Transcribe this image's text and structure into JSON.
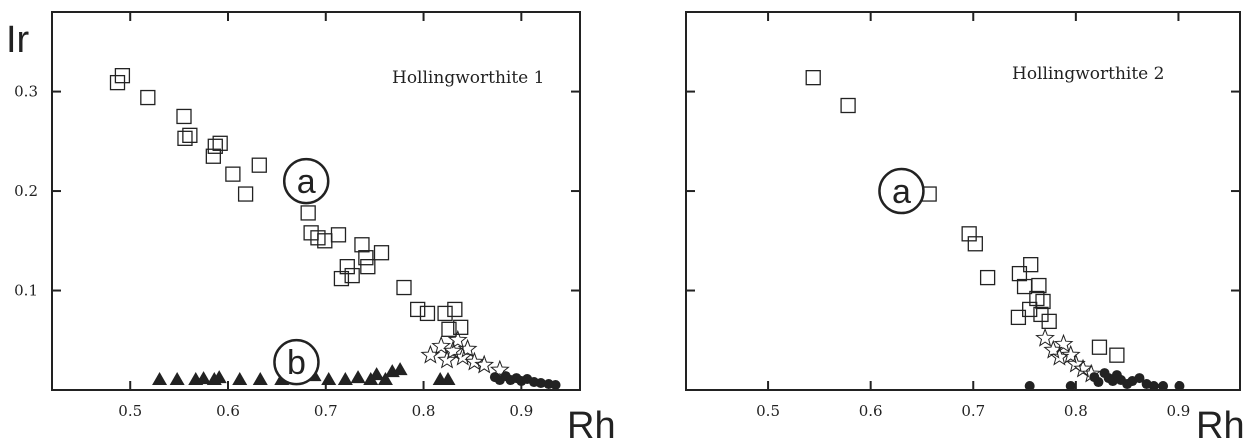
{
  "ylabel": "Ir",
  "xlabel": "Rh",
  "chart_data": [
    {
      "type": "scatter",
      "title": "Hollingworthite 1",
      "xlim": [
        0.42,
        0.96
      ],
      "ylim": [
        0,
        0.38
      ],
      "x_ticks": [
        0.5,
        0.6,
        0.7,
        0.8,
        0.9
      ],
      "x_tick_labels": [
        "0.5",
        "0.6",
        "0.7",
        "0.8",
        "0.9"
      ],
      "y_ticks": [
        0.1,
        0.2,
        0.3
      ],
      "y_tick_labels": [
        "0.1",
        "0.2",
        "0.3"
      ],
      "annotations": [
        {
          "text": "a",
          "x": 0.68,
          "y": 0.21
        },
        {
          "text": "b",
          "x": 0.67,
          "y": 0.028
        }
      ],
      "series": [
        {
          "marker": "open-square",
          "points": [
            [
              0.487,
              0.309
            ],
            [
              0.492,
              0.316
            ],
            [
              0.518,
              0.294
            ],
            [
              0.555,
              0.275
            ],
            [
              0.556,
              0.253
            ],
            [
              0.561,
              0.256
            ],
            [
              0.585,
              0.235
            ],
            [
              0.587,
              0.245
            ],
            [
              0.592,
              0.248
            ],
            [
              0.605,
              0.217
            ],
            [
              0.618,
              0.197
            ],
            [
              0.632,
              0.226
            ],
            [
              0.682,
              0.178
            ],
            [
              0.685,
              0.158
            ],
            [
              0.692,
              0.153
            ],
            [
              0.699,
              0.15
            ],
            [
              0.713,
              0.156
            ],
            [
              0.716,
              0.112
            ],
            [
              0.722,
              0.124
            ],
            [
              0.727,
              0.115
            ],
            [
              0.737,
              0.146
            ],
            [
              0.741,
              0.133
            ],
            [
              0.743,
              0.124
            ],
            [
              0.757,
              0.138
            ],
            [
              0.78,
              0.103
            ],
            [
              0.794,
              0.081
            ],
            [
              0.804,
              0.077
            ],
            [
              0.822,
              0.077
            ],
            [
              0.826,
              0.061
            ],
            [
              0.832,
              0.081
            ],
            [
              0.838,
              0.063
            ]
          ]
        },
        {
          "marker": "filled-triangle",
          "points": [
            [
              0.53,
              0.011
            ],
            [
              0.548,
              0.011
            ],
            [
              0.567,
              0.011
            ],
            [
              0.575,
              0.012
            ],
            [
              0.586,
              0.011
            ],
            [
              0.591,
              0.013
            ],
            [
              0.612,
              0.011
            ],
            [
              0.633,
              0.011
            ],
            [
              0.655,
              0.011
            ],
            [
              0.668,
              0.013
            ],
            [
              0.676,
              0.021
            ],
            [
              0.688,
              0.015
            ],
            [
              0.703,
              0.011
            ],
            [
              0.72,
              0.011
            ],
            [
              0.733,
              0.013
            ],
            [
              0.746,
              0.011
            ],
            [
              0.752,
              0.016
            ],
            [
              0.761,
              0.011
            ],
            [
              0.768,
              0.019
            ],
            [
              0.776,
              0.021
            ],
            [
              0.817,
              0.011
            ],
            [
              0.825,
              0.011
            ]
          ]
        },
        {
          "marker": "open-star",
          "points": [
            [
              0.807,
              0.035
            ],
            [
              0.818,
              0.044
            ],
            [
              0.824,
              0.03
            ],
            [
              0.83,
              0.039
            ],
            [
              0.835,
              0.05
            ],
            [
              0.84,
              0.033
            ],
            [
              0.845,
              0.041
            ],
            [
              0.852,
              0.028
            ],
            [
              0.862,
              0.025
            ],
            [
              0.878,
              0.02
            ]
          ]
        },
        {
          "marker": "filled-circle",
          "points": [
            [
              0.873,
              0.013
            ],
            [
              0.878,
              0.01
            ],
            [
              0.884,
              0.014
            ],
            [
              0.889,
              0.01
            ],
            [
              0.895,
              0.012
            ],
            [
              0.9,
              0.009
            ],
            [
              0.906,
              0.011
            ],
            [
              0.913,
              0.008
            ],
            [
              0.92,
              0.007
            ],
            [
              0.928,
              0.006
            ],
            [
              0.935,
              0.005
            ]
          ]
        }
      ]
    },
    {
      "type": "scatter",
      "title": "Hollingworthite 2",
      "xlim": [
        0.42,
        0.96
      ],
      "ylim": [
        0,
        0.38
      ],
      "x_ticks": [
        0.5,
        0.6,
        0.7,
        0.8,
        0.9
      ],
      "x_tick_labels": [
        "0.5",
        "0.6",
        "0.7",
        "0.8",
        "0.9"
      ],
      "y_ticks": [
        0.1,
        0.2,
        0.3
      ],
      "y_tick_labels": [],
      "annotations": [
        {
          "text": "a",
          "x": 0.63,
          "y": 0.2
        }
      ],
      "series": [
        {
          "marker": "open-square",
          "points": [
            [
              0.544,
              0.314
            ],
            [
              0.578,
              0.286
            ],
            [
              0.657,
              0.197
            ],
            [
              0.696,
              0.157
            ],
            [
              0.702,
              0.147
            ],
            [
              0.714,
              0.113
            ],
            [
              0.745,
              0.117
            ],
            [
              0.75,
              0.104
            ],
            [
              0.756,
              0.126
            ],
            [
              0.744,
              0.073
            ],
            [
              0.755,
              0.081
            ],
            [
              0.762,
              0.092
            ],
            [
              0.764,
              0.105
            ],
            [
              0.766,
              0.076
            ],
            [
              0.768,
              0.089
            ],
            [
              0.774,
              0.069
            ],
            [
              0.823,
              0.043
            ],
            [
              0.84,
              0.035
            ]
          ]
        },
        {
          "marker": "open-star",
          "points": [
            [
              0.77,
              0.052
            ],
            [
              0.778,
              0.04
            ],
            [
              0.784,
              0.033
            ],
            [
              0.788,
              0.046
            ],
            [
              0.795,
              0.035
            ],
            [
              0.8,
              0.026
            ],
            [
              0.807,
              0.021
            ],
            [
              0.815,
              0.016
            ]
          ]
        },
        {
          "marker": "filled-circle",
          "points": [
            [
              0.755,
              0.004
            ],
            [
              0.795,
              0.004
            ],
            [
              0.818,
              0.013
            ],
            [
              0.822,
              0.008
            ],
            [
              0.828,
              0.017
            ],
            [
              0.832,
              0.012
            ],
            [
              0.836,
              0.009
            ],
            [
              0.84,
              0.015
            ],
            [
              0.844,
              0.01
            ],
            [
              0.85,
              0.006
            ],
            [
              0.855,
              0.009
            ],
            [
              0.862,
              0.012
            ],
            [
              0.869,
              0.006
            ],
            [
              0.876,
              0.004
            ],
            [
              0.885,
              0.004
            ],
            [
              0.901,
              0.004
            ]
          ]
        }
      ]
    }
  ]
}
